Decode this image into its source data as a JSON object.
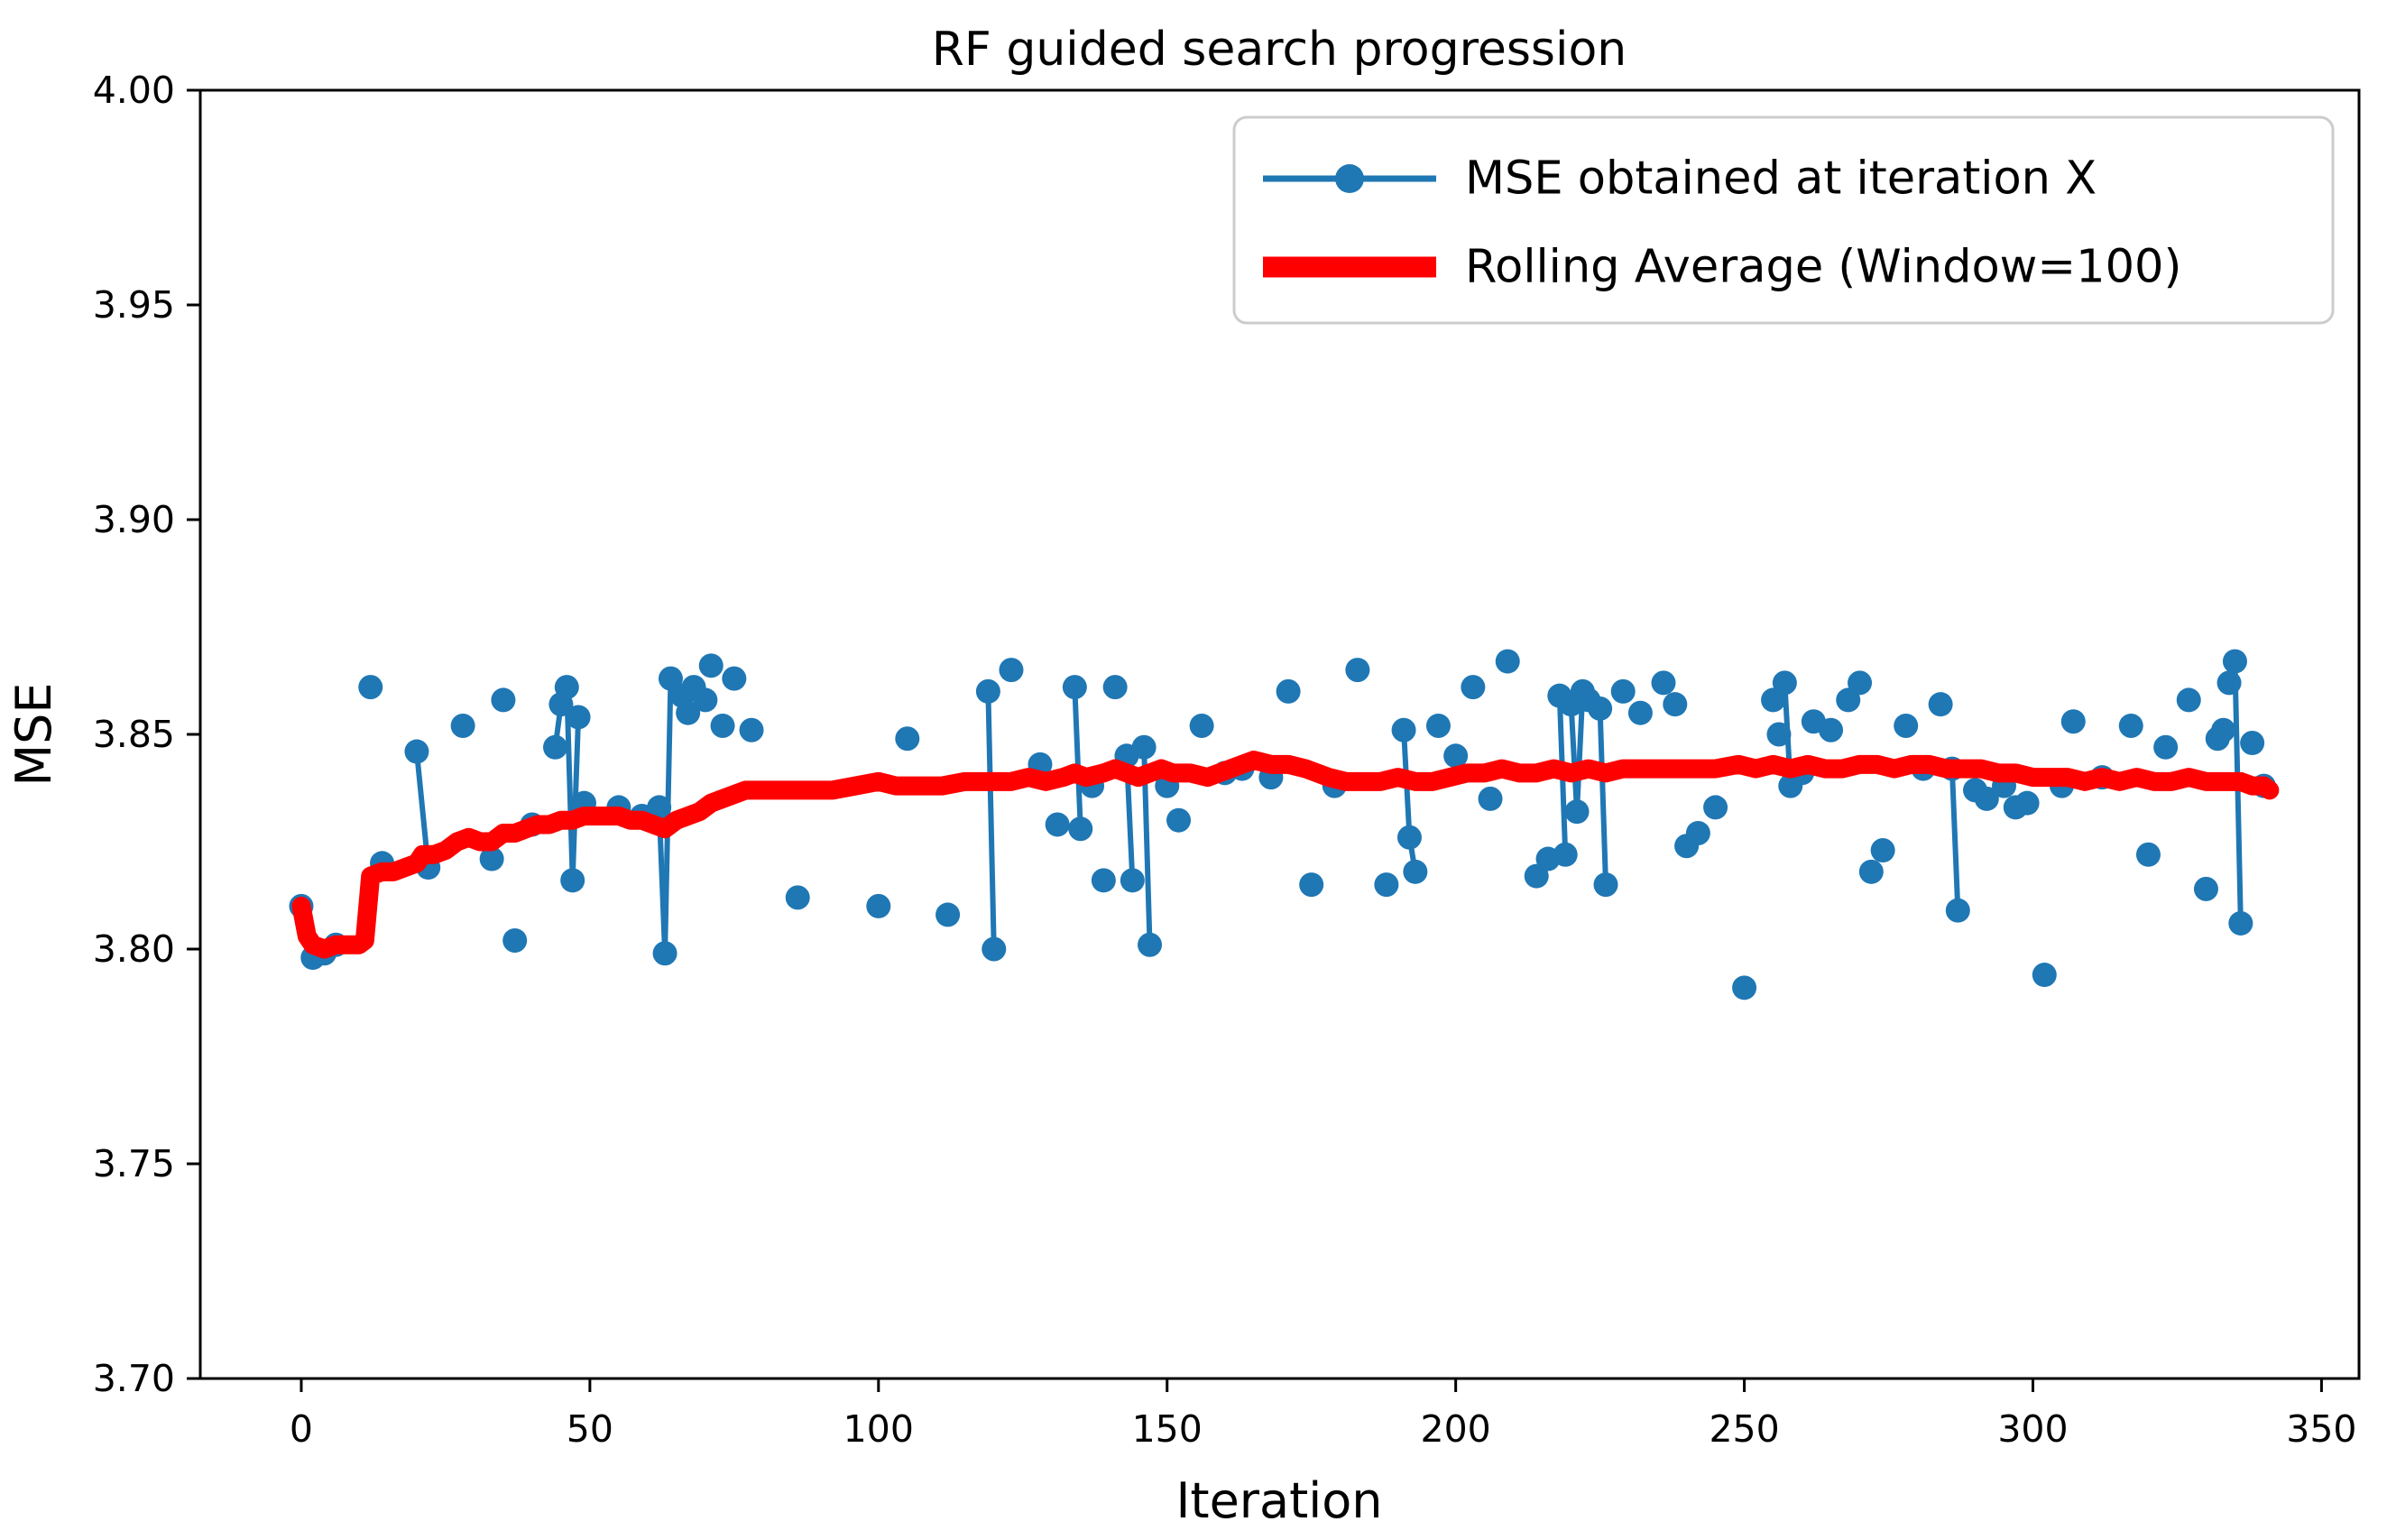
{
  "chart_data": {
    "type": "line",
    "title": "RF guided search progression",
    "xlabel": "Iteration",
    "ylabel": "MSE",
    "xlim": [
      -17.5,
      356.5
    ],
    "ylim": [
      3.7,
      4.0
    ],
    "x_ticks": [
      0,
      50,
      100,
      150,
      200,
      250,
      300,
      350
    ],
    "y_ticks": [
      "4.00",
      "3.95",
      "3.90",
      "3.85",
      "3.80",
      "3.75",
      "3.70"
    ],
    "grid": false,
    "legend_position": "upper right",
    "background_color": "#ffffff",
    "axis_color": "#000000",
    "series": [
      {
        "name": "MSE obtained at iteration X",
        "type": "scatter-with-connectors",
        "color": "#1f77b4",
        "marker": "circle",
        "marker_radius": 13.5,
        "line_width": 6,
        "points": [
          [
            0,
            3.81
          ],
          [
            2,
            3.798
          ],
          [
            4,
            3.799
          ],
          [
            6,
            3.801
          ],
          [
            12,
            3.861
          ],
          [
            14,
            3.82
          ],
          [
            20,
            3.846
          ],
          [
            22,
            3.819
          ],
          [
            28,
            3.852
          ],
          [
            33,
            3.821
          ],
          [
            35,
            3.858
          ],
          [
            37,
            3.802
          ],
          [
            40,
            3.829
          ],
          [
            44,
            3.847
          ],
          [
            45,
            3.857
          ],
          [
            46,
            3.861
          ],
          [
            47,
            3.816
          ],
          [
            48,
            3.854
          ],
          [
            49,
            3.834
          ],
          [
            55,
            3.833
          ],
          [
            59,
            3.831
          ],
          [
            62,
            3.833
          ],
          [
            63,
            3.799
          ],
          [
            64,
            3.863
          ],
          [
            66,
            3.859
          ],
          [
            67,
            3.855
          ],
          [
            68,
            3.861
          ],
          [
            70,
            3.858
          ],
          [
            71,
            3.866
          ],
          [
            73,
            3.852
          ],
          [
            75,
            3.863
          ],
          [
            78,
            3.851
          ],
          [
            86,
            3.812
          ],
          [
            100,
            3.81
          ],
          [
            105,
            3.849
          ],
          [
            112,
            3.808
          ],
          [
            119,
            3.86
          ],
          [
            120,
            3.8
          ],
          [
            123,
            3.865
          ],
          [
            128,
            3.843
          ],
          [
            131,
            3.829
          ],
          [
            134,
            3.861
          ],
          [
            135,
            3.828
          ],
          [
            137,
            3.838
          ],
          [
            139,
            3.816
          ],
          [
            141,
            3.861
          ],
          [
            143,
            3.845
          ],
          [
            144,
            3.816
          ],
          [
            146,
            3.847
          ],
          [
            147,
            3.801
          ],
          [
            150,
            3.838
          ],
          [
            152,
            3.83
          ],
          [
            156,
            3.852
          ],
          [
            160,
            3.841
          ],
          [
            163,
            3.842
          ],
          [
            168,
            3.84
          ],
          [
            171,
            3.86
          ],
          [
            175,
            3.815
          ],
          [
            179,
            3.838
          ],
          [
            183,
            3.865
          ],
          [
            188,
            3.815
          ],
          [
            191,
            3.851
          ],
          [
            192,
            3.826
          ],
          [
            193,
            3.818
          ],
          [
            197,
            3.852
          ],
          [
            200,
            3.845
          ],
          [
            203,
            3.861
          ],
          [
            206,
            3.835
          ],
          [
            209,
            3.867
          ],
          [
            214,
            3.817
          ],
          [
            216,
            3.821
          ],
          [
            218,
            3.859
          ],
          [
            219,
            3.822
          ],
          [
            220,
            3.857
          ],
          [
            221,
            3.832
          ],
          [
            222,
            3.86
          ],
          [
            223,
            3.858
          ],
          [
            225,
            3.856
          ],
          [
            226,
            3.815
          ],
          [
            229,
            3.86
          ],
          [
            232,
            3.855
          ],
          [
            236,
            3.862
          ],
          [
            238,
            3.857
          ],
          [
            240,
            3.824
          ],
          [
            242,
            3.827
          ],
          [
            245,
            3.833
          ],
          [
            250,
            3.791
          ],
          [
            255,
            3.858
          ],
          [
            256,
            3.85
          ],
          [
            257,
            3.862
          ],
          [
            258,
            3.838
          ],
          [
            260,
            3.841
          ],
          [
            262,
            3.853
          ],
          [
            265,
            3.851
          ],
          [
            268,
            3.858
          ],
          [
            270,
            3.862
          ],
          [
            272,
            3.818
          ],
          [
            274,
            3.823
          ],
          [
            278,
            3.852
          ],
          [
            281,
            3.842
          ],
          [
            284,
            3.857
          ],
          [
            286,
            3.842
          ],
          [
            287,
            3.809
          ],
          [
            290,
            3.837
          ],
          [
            292,
            3.835
          ],
          [
            295,
            3.838
          ],
          [
            297,
            3.833
          ],
          [
            299,
            3.834
          ],
          [
            302,
            3.794
          ],
          [
            305,
            3.838
          ],
          [
            307,
            3.853
          ],
          [
            312,
            3.84
          ],
          [
            317,
            3.852
          ],
          [
            320,
            3.822
          ],
          [
            323,
            3.847
          ],
          [
            327,
            3.858
          ],
          [
            330,
            3.814
          ],
          [
            332,
            3.849
          ],
          [
            333,
            3.851
          ],
          [
            334,
            3.862
          ],
          [
            335,
            3.867
          ],
          [
            336,
            3.806
          ],
          [
            338,
            3.848
          ],
          [
            340,
            3.838
          ]
        ],
        "connector_segments": [
          [
            0,
            3.81,
            2,
            3.798
          ],
          [
            2,
            3.798,
            4,
            3.799
          ],
          [
            20,
            3.846,
            22,
            3.819
          ],
          [
            44,
            3.847,
            45,
            3.857
          ],
          [
            46,
            3.861,
            47,
            3.816
          ],
          [
            47,
            3.816,
            48,
            3.854
          ],
          [
            62,
            3.833,
            63,
            3.799
          ],
          [
            63,
            3.799,
            64,
            3.863
          ],
          [
            119,
            3.86,
            120,
            3.8
          ],
          [
            134,
            3.861,
            135,
            3.828
          ],
          [
            143,
            3.845,
            144,
            3.816
          ],
          [
            146,
            3.847,
            147,
            3.801
          ],
          [
            191,
            3.851,
            192,
            3.826
          ],
          [
            192,
            3.826,
            193,
            3.818
          ],
          [
            218,
            3.859,
            219,
            3.822
          ],
          [
            220,
            3.857,
            221,
            3.832
          ],
          [
            221,
            3.832,
            222,
            3.86
          ],
          [
            225,
            3.856,
            226,
            3.815
          ],
          [
            257,
            3.862,
            258,
            3.838
          ],
          [
            286,
            3.842,
            287,
            3.809
          ],
          [
            335,
            3.867,
            336,
            3.806
          ]
        ]
      },
      {
        "name": "Rolling Average (Window=100)",
        "type": "line",
        "color": "#ff0000",
        "line_width": 21,
        "points": [
          [
            0,
            3.81
          ],
          [
            1,
            3.803
          ],
          [
            2,
            3.801
          ],
          [
            4,
            3.8
          ],
          [
            6,
            3.801
          ],
          [
            8,
            3.801
          ],
          [
            10,
            3.801
          ],
          [
            11,
            3.802
          ],
          [
            12,
            3.817
          ],
          [
            14,
            3.818
          ],
          [
            16,
            3.818
          ],
          [
            18,
            3.819
          ],
          [
            20,
            3.82
          ],
          [
            21,
            3.822
          ],
          [
            23,
            3.822
          ],
          [
            25,
            3.823
          ],
          [
            27,
            3.825
          ],
          [
            29,
            3.826
          ],
          [
            31,
            3.825
          ],
          [
            33,
            3.825
          ],
          [
            35,
            3.827
          ],
          [
            37,
            3.827
          ],
          [
            39,
            3.828
          ],
          [
            41,
            3.829
          ],
          [
            43,
            3.829
          ],
          [
            45,
            3.83
          ],
          [
            47,
            3.83
          ],
          [
            49,
            3.831
          ],
          [
            52,
            3.831
          ],
          [
            55,
            3.831
          ],
          [
            57,
            3.83
          ],
          [
            59,
            3.83
          ],
          [
            61,
            3.829
          ],
          [
            63,
            3.828
          ],
          [
            65,
            3.83
          ],
          [
            67,
            3.831
          ],
          [
            69,
            3.832
          ],
          [
            71,
            3.834
          ],
          [
            73,
            3.835
          ],
          [
            75,
            3.836
          ],
          [
            77,
            3.837
          ],
          [
            80,
            3.837
          ],
          [
            84,
            3.837
          ],
          [
            88,
            3.837
          ],
          [
            92,
            3.837
          ],
          [
            96,
            3.838
          ],
          [
            100,
            3.839
          ],
          [
            103,
            3.838
          ],
          [
            107,
            3.838
          ],
          [
            111,
            3.838
          ],
          [
            115,
            3.839
          ],
          [
            119,
            3.839
          ],
          [
            123,
            3.839
          ],
          [
            126,
            3.84
          ],
          [
            129,
            3.839
          ],
          [
            132,
            3.84
          ],
          [
            134,
            3.841
          ],
          [
            136,
            3.84
          ],
          [
            139,
            3.841
          ],
          [
            141,
            3.842
          ],
          [
            143,
            3.841
          ],
          [
            145,
            3.84
          ],
          [
            147,
            3.841
          ],
          [
            149,
            3.842
          ],
          [
            151,
            3.841
          ],
          [
            154,
            3.841
          ],
          [
            157,
            3.84
          ],
          [
            159,
            3.841
          ],
          [
            161,
            3.842
          ],
          [
            163,
            3.843
          ],
          [
            165,
            3.844
          ],
          [
            168,
            3.843
          ],
          [
            171,
            3.843
          ],
          [
            174,
            3.842
          ],
          [
            176,
            3.841
          ],
          [
            178,
            3.84
          ],
          [
            181,
            3.839
          ],
          [
            184,
            3.839
          ],
          [
            187,
            3.839
          ],
          [
            190,
            3.84
          ],
          [
            193,
            3.839
          ],
          [
            196,
            3.839
          ],
          [
            199,
            3.84
          ],
          [
            202,
            3.841
          ],
          [
            205,
            3.841
          ],
          [
            208,
            3.842
          ],
          [
            211,
            3.841
          ],
          [
            214,
            3.841
          ],
          [
            217,
            3.842
          ],
          [
            220,
            3.841
          ],
          [
            223,
            3.842
          ],
          [
            226,
            3.841
          ],
          [
            229,
            3.842
          ],
          [
            233,
            3.842
          ],
          [
            237,
            3.842
          ],
          [
            241,
            3.842
          ],
          [
            245,
            3.842
          ],
          [
            249,
            3.843
          ],
          [
            252,
            3.842
          ],
          [
            255,
            3.843
          ],
          [
            258,
            3.842
          ],
          [
            261,
            3.843
          ],
          [
            264,
            3.842
          ],
          [
            267,
            3.842
          ],
          [
            270,
            3.843
          ],
          [
            273,
            3.843
          ],
          [
            276,
            3.842
          ],
          [
            279,
            3.843
          ],
          [
            282,
            3.843
          ],
          [
            285,
            3.842
          ],
          [
            288,
            3.842
          ],
          [
            291,
            3.842
          ],
          [
            294,
            3.841
          ],
          [
            297,
            3.841
          ],
          [
            300,
            3.84
          ],
          [
            303,
            3.84
          ],
          [
            306,
            3.84
          ],
          [
            309,
            3.839
          ],
          [
            312,
            3.84
          ],
          [
            315,
            3.839
          ],
          [
            318,
            3.84
          ],
          [
            321,
            3.839
          ],
          [
            324,
            3.839
          ],
          [
            327,
            3.84
          ],
          [
            330,
            3.839
          ],
          [
            333,
            3.839
          ],
          [
            336,
            3.839
          ],
          [
            338,
            3.838
          ],
          [
            340,
            3.838
          ],
          [
            341,
            3.837
          ]
        ]
      }
    ]
  },
  "legend": {
    "entries": [
      {
        "label": "MSE obtained at iteration X",
        "color": "#1f77b4",
        "style": "line-with-marker"
      },
      {
        "label": "Rolling Average (Window=100)",
        "color": "#ff0000",
        "style": "thick-line"
      }
    ]
  }
}
